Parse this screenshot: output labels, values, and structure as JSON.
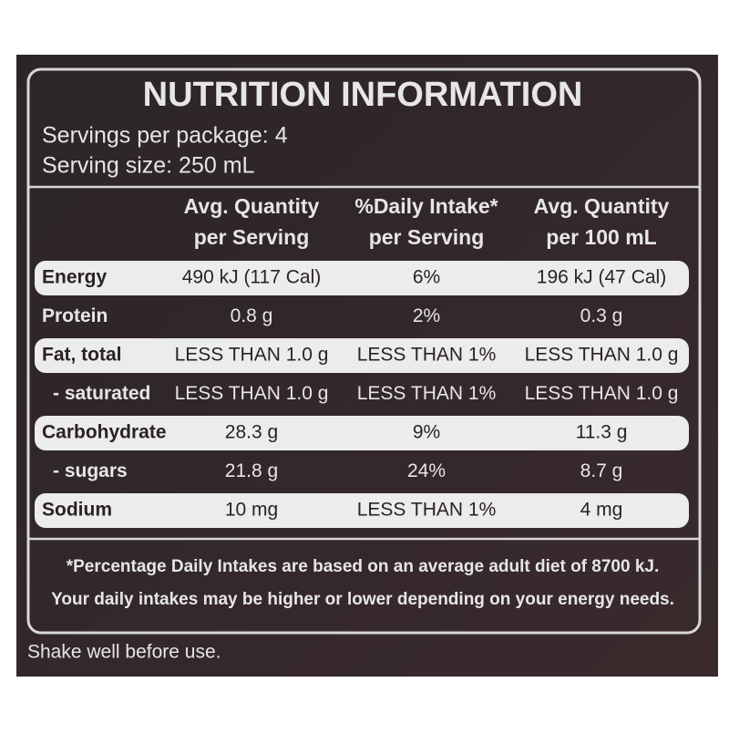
{
  "header": {
    "title": "NUTRITION INFORMATION",
    "servings_per_package": "Servings per package: 4",
    "serving_size": "Serving size: 250 mL"
  },
  "table": {
    "columns": [
      [
        "Avg. Quantity",
        "per Serving"
      ],
      [
        "%Daily Intake*",
        "per Serving"
      ],
      [
        "Avg. Quantity",
        "per 100 mL"
      ]
    ],
    "rows": [
      {
        "label": "Energy",
        "values": [
          "490 kJ (117 Cal)",
          "6%",
          "196 kJ (47 Cal)"
        ],
        "highlight": true
      },
      {
        "label": "Protein",
        "values": [
          "0.8 g",
          "2%",
          "0.3 g"
        ],
        "highlight": false
      },
      {
        "label": "Fat, total",
        "values": [
          "LESS THAN 1.0 g",
          "LESS THAN 1%",
          "LESS THAN 1.0 g"
        ],
        "highlight": true
      },
      {
        "label": "- saturated",
        "values": [
          "LESS THAN 1.0 g",
          "LESS THAN 1%",
          "LESS THAN 1.0 g"
        ],
        "highlight": false
      },
      {
        "label": "Carbohydrate",
        "values": [
          "28.3 g",
          "9%",
          "11.3 g"
        ],
        "highlight": true
      },
      {
        "label": "- sugars",
        "values": [
          "21.8 g",
          "24%",
          "8.7 g"
        ],
        "highlight": false
      },
      {
        "label": "Sodium",
        "values": [
          "10 mg",
          "LESS THAN 1%",
          "4 mg"
        ],
        "highlight": true
      }
    ]
  },
  "footnote": [
    "*Percentage Daily Intakes are based on an average adult diet of 8700 kJ.",
    "Your daily intakes may be higher or lower depending on your energy needs."
  ],
  "note": "Shake well before use."
}
